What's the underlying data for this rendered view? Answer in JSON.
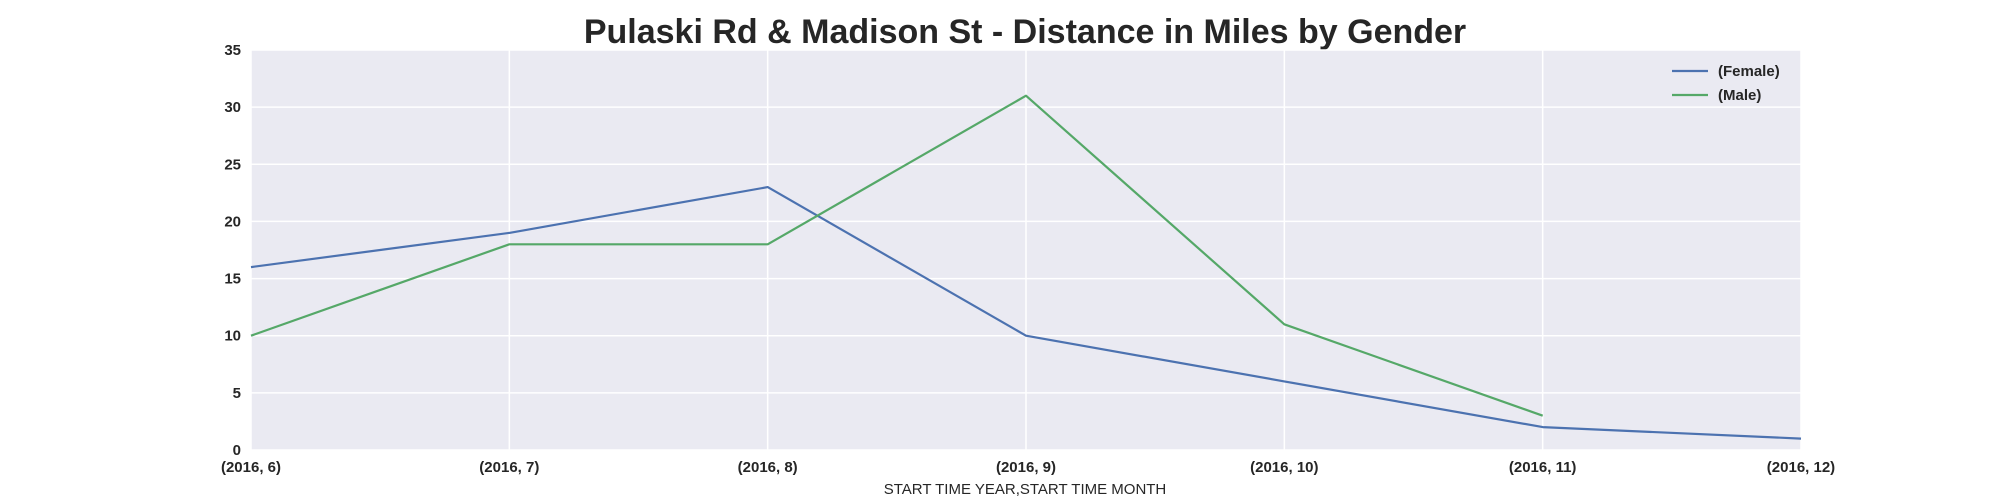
{
  "chart_data": {
    "type": "line",
    "title": "Pulaski Rd & Madison St - Distance in Miles by Gender",
    "xlabel": "START TIME YEAR,START TIME MONTH",
    "ylabel": "",
    "categories": [
      "(2016, 6)",
      "(2016, 7)",
      "(2016, 8)",
      "(2016, 9)",
      "(2016, 10)",
      "(2016, 11)",
      "(2016, 12)"
    ],
    "yticks": [
      0,
      5,
      10,
      15,
      20,
      25,
      30,
      35
    ],
    "ylim": [
      0,
      35
    ],
    "grid": true,
    "legend_position": "top-right",
    "series": [
      {
        "name": "(Female)",
        "color": "#4c72b0",
        "values": [
          16,
          19,
          23,
          10,
          6,
          2,
          1
        ]
      },
      {
        "name": "(Male)",
        "color": "#55a868",
        "values": [
          10,
          18,
          18,
          31,
          11,
          3,
          null
        ]
      }
    ]
  },
  "colors": {
    "plot_background": "#eaeaf2",
    "grid": "#ffffff",
    "text": "#262626"
  }
}
